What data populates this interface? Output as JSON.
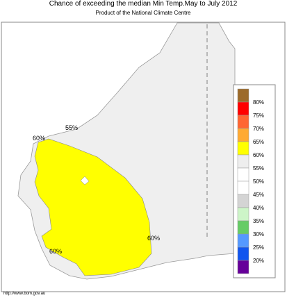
{
  "header": {
    "title": "Chance of exceeding the median Min Temp.May to July 2012",
    "subtitle": "Product of the National Climate Centre"
  },
  "map_labels": [
    "55%",
    "60%",
    "60%",
    "60%"
  ],
  "legend": {
    "labels": [
      "80%",
      "75%",
      "70%",
      "65%",
      "60%",
      "55%",
      "50%",
      "45%",
      "40%",
      "35%",
      "30%",
      "25%",
      "20%"
    ],
    "colors": [
      "#9c6a2a",
      "#ff0000",
      "#ff6633",
      "#ffaa33",
      "#ffff00",
      "#eeeeee",
      "#ffffff",
      "#ffffff",
      "#d4d4d4",
      "#cdf5c8",
      "#66cc66",
      "#5599ff",
      "#1155ee",
      "#660099"
    ]
  },
  "footer": "http://www.bom.gov.au"
}
